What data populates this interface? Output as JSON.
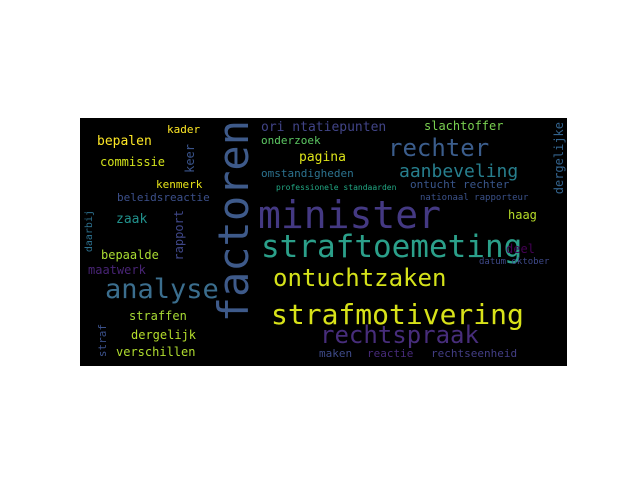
{
  "words": [
    {
      "text": "minister",
      "color": "#443983",
      "vertical": false,
      "size": 38
    },
    {
      "text": "factoren",
      "color": "#3e5a8a",
      "vertical": true,
      "size": 42
    },
    {
      "text": "straftoemeting",
      "color": "#2ba08a",
      "vertical": false,
      "size": 31
    },
    {
      "text": "strafmotivering",
      "color": "#d8e219",
      "vertical": false,
      "size": 28
    },
    {
      "text": "analyse",
      "color": "#3b6e8e",
      "vertical": false,
      "size": 27
    },
    {
      "text": "ontuchtzaken",
      "color": "#d5e21a",
      "vertical": false,
      "size": 24
    },
    {
      "text": "rechtspraak",
      "color": "#472d7b",
      "vertical": false,
      "size": 24
    },
    {
      "text": "rechter",
      "color": "#3b5d8c",
      "vertical": false,
      "size": 24
    },
    {
      "text": "aanbeveling",
      "color": "#277f8e",
      "vertical": false,
      "size": 18
    },
    {
      "text": "ori ntatiepunten",
      "color": "#414487",
      "vertical": false,
      "size": 13
    },
    {
      "text": "slachtoffer",
      "color": "#7ad151",
      "vertical": false,
      "size": 12
    },
    {
      "text": "dergelijke",
      "color": "#33638d",
      "vertical": true,
      "size": 12
    },
    {
      "text": "kader",
      "color": "#fde725",
      "vertical": false,
      "size": 11
    },
    {
      "text": "bepalen",
      "color": "#fde725",
      "vertical": false,
      "size": 13
    },
    {
      "text": "commissie",
      "color": "#d2e21b",
      "vertical": false,
      "size": 12
    },
    {
      "text": "keer",
      "color": "#3a548c",
      "vertical": true,
      "size": 12
    },
    {
      "text": "onderzoek",
      "color": "#5cc863",
      "vertical": false,
      "size": 11
    },
    {
      "text": "pagina",
      "color": "#dce319",
      "vertical": false,
      "size": 13
    },
    {
      "text": "omstandigheden",
      "color": "#2c728e",
      "vertical": false,
      "size": 11
    },
    {
      "text": "ontucht rechter",
      "color": "#39568c",
      "vertical": false,
      "size": 11
    },
    {
      "text": "kenmerk",
      "color": "#e7e419",
      "vertical": false,
      "size": 11
    },
    {
      "text": "beleidsreactie",
      "color": "#3c508b",
      "vertical": false,
      "size": 11
    },
    {
      "text": "zaak",
      "color": "#21918c",
      "vertical": false,
      "size": 13
    },
    {
      "text": "rapport",
      "color": "#3f4788",
      "vertical": true,
      "size": 12
    },
    {
      "text": "daarbij",
      "color": "#2d708e",
      "vertical": true,
      "size": 10
    },
    {
      "text": "bepaalde",
      "color": "#aadc32",
      "vertical": false,
      "size": 12
    },
    {
      "text": "maatwerk",
      "color": "#482475",
      "vertical": false,
      "size": 12
    },
    {
      "text": "haag",
      "color": "#b8de29",
      "vertical": false,
      "size": 12
    },
    {
      "text": "nationaal rapporteur",
      "color": "#3b528b",
      "vertical": false,
      "size": 9
    },
    {
      "text": "professionele standaarden",
      "color": "#22a884",
      "vertical": false,
      "size": 8
    },
    {
      "text": "deel",
      "color": "#440154",
      "vertical": false,
      "size": 12
    },
    {
      "text": "datum oktober",
      "color": "#3e4989",
      "vertical": false,
      "size": 9
    },
    {
      "text": "straffen",
      "color": "#a8db34",
      "vertical": false,
      "size": 12
    },
    {
      "text": "straf",
      "color": "#3b518b",
      "vertical": true,
      "size": 11
    },
    {
      "text": "dergelijk",
      "color": "#b5de2b",
      "vertical": false,
      "size": 12
    },
    {
      "text": "verschillen",
      "color": "#b0dd2f",
      "vertical": false,
      "size": 12
    },
    {
      "text": "maken",
      "color": "#3e4a89",
      "vertical": false,
      "size": 11
    },
    {
      "text": "reactie",
      "color": "#472a7a",
      "vertical": false,
      "size": 11
    },
    {
      "text": "rechtseenheid",
      "color": "#433e85",
      "vertical": false,
      "size": 11
    }
  ]
}
